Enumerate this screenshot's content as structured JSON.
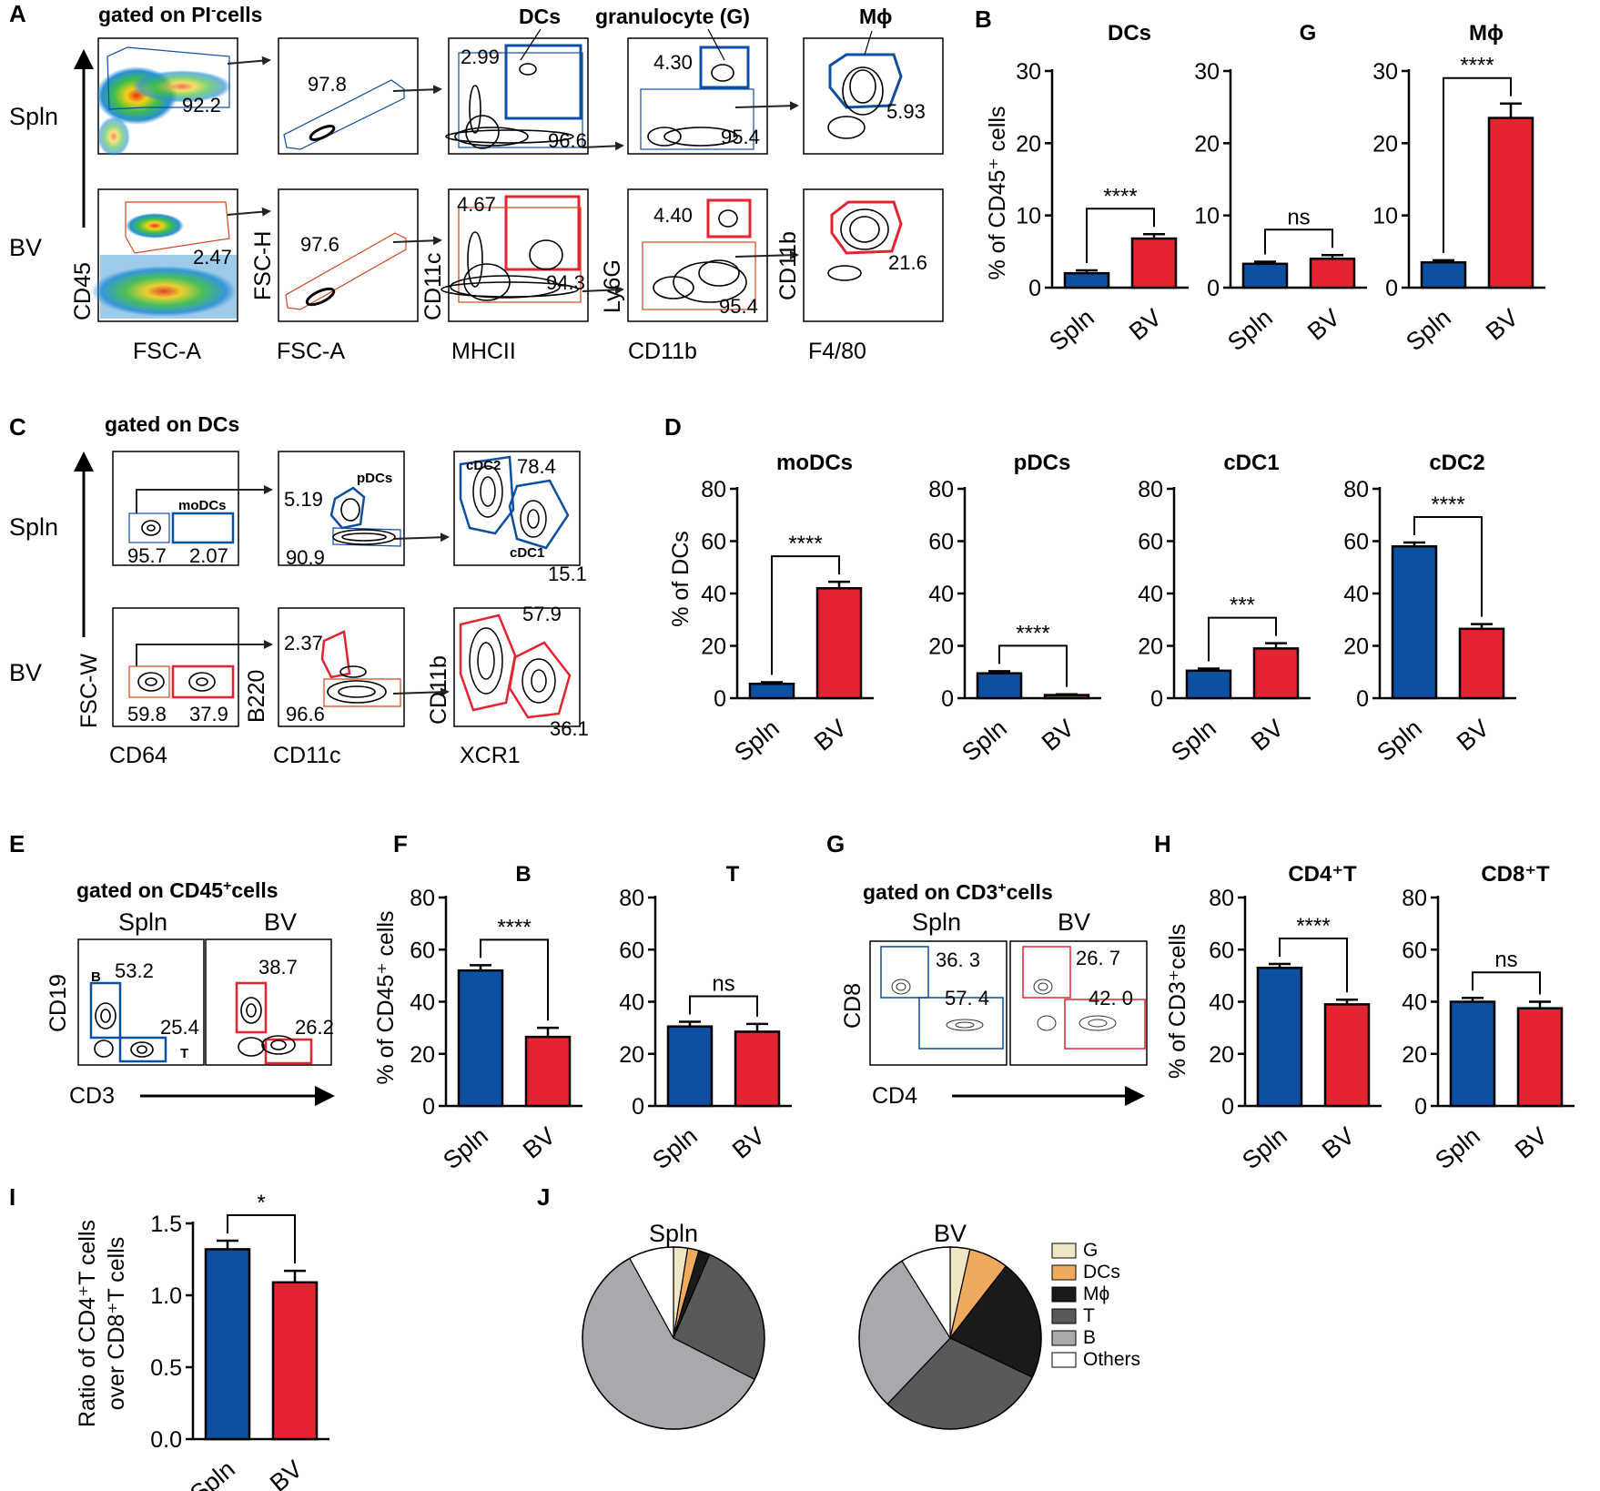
{
  "colors": {
    "spln": "#0d4fa0",
    "bv": "#e42431",
    "g": "#efe6c4",
    "dcs": "#eeab60",
    "mphi": "#1a1a1a",
    "t": "#595959",
    "b": "#a8a9ad",
    "others": "#ffffff"
  },
  "panel_labels": {
    "A": "A",
    "B": "B",
    "C": "C",
    "D": "D",
    "E": "E",
    "F": "F",
    "G": "G",
    "H": "H",
    "I": "I",
    "J": "J"
  },
  "gating_a": {
    "title": "gated on PI",
    "title_sup": "-",
    "title_suffix": "cells",
    "row_spln": "Spln",
    "row_bv": "BV",
    "gate_names": {
      "dcs": "DCs",
      "g": "granulocyte (G)",
      "mphi": "Mϕ"
    },
    "x_axis": [
      "FSC-A",
      "FSC-A",
      "MHCII",
      "CD11b",
      "F4/80"
    ],
    "y_axis": [
      "CD45",
      "FSC-H",
      "CD11c",
      "Ly6G",
      "CD11b"
    ],
    "spln_values": [
      "92.2",
      "97.8",
      "2.99",
      "96.6",
      "4.30",
      "95.4",
      "5.93"
    ],
    "bv_values": [
      "2.47",
      "97.6",
      "4.67",
      "94.3",
      "4.40",
      "95.4",
      "21.6"
    ]
  },
  "gating_c": {
    "title": "gated on DCs",
    "row_spln": "Spln",
    "row_bv": "BV",
    "gate_names": {
      "modcs": "moDCs",
      "pdcs": "pDCs",
      "cdc2": "cDC2",
      "cdc1": "cDC1"
    },
    "x_axis": [
      "CD64",
      "CD11c",
      "XCR1"
    ],
    "y_axis": [
      "FSC-W",
      "B220",
      "CD11b"
    ],
    "spln_values": [
      "95.7",
      "2.07",
      "5.19",
      "90.9",
      "78.4",
      "15.1"
    ],
    "bv_values": [
      "59.8",
      "37.9",
      "2.37",
      "96.6",
      "57.9",
      "36.1"
    ]
  },
  "gating_e": {
    "title": "gated on CD45",
    "title_sup": "+",
    "title_suffix": "cells",
    "col_spln": "Spln",
    "col_bv": "BV",
    "x_axis": "CD3",
    "y_axis": "CD19",
    "gate_b": "B",
    "gate_t": "T",
    "spln_values": [
      "53.2",
      "25.4"
    ],
    "bv_values": [
      "38.7",
      "26.2"
    ]
  },
  "gating_g": {
    "title": "gated on CD3",
    "title_sup": "+",
    "title_suffix": "cells",
    "col_spln": "Spln",
    "col_bv": "BV",
    "x_axis": "CD4",
    "y_axis": "CD8",
    "spln_values": [
      "36. 3",
      "57. 4"
    ],
    "bv_values": [
      "26. 7",
      "42. 0"
    ]
  },
  "axis_titles": {
    "B": "% of CD45⁺ cells",
    "D": "% of DCs",
    "F": "% of CD45⁺ cells",
    "H": "% of CD3⁺cells",
    "I": [
      "Ratio of CD4⁺T cells",
      "over CD8⁺T cells"
    ]
  },
  "chart_data": [
    {
      "panel": "B",
      "type": "bar",
      "title": "DCs",
      "categories": [
        "Spln",
        "BV"
      ],
      "values": [
        2.0,
        6.8
      ],
      "errors": [
        0.4,
        0.6
      ],
      "ylim": [
        0,
        30
      ],
      "yticks": [
        0,
        10,
        20,
        30
      ],
      "significance": "****"
    },
    {
      "panel": "B",
      "type": "bar",
      "title": "G",
      "categories": [
        "Spln",
        "BV"
      ],
      "values": [
        3.3,
        4.0
      ],
      "errors": [
        0.3,
        0.5
      ],
      "ylim": [
        0,
        30
      ],
      "yticks": [
        0,
        10,
        20,
        30
      ],
      "significance": "ns"
    },
    {
      "panel": "B",
      "type": "bar",
      "title": "Mϕ",
      "categories": [
        "Spln",
        "BV"
      ],
      "values": [
        3.5,
        23.5
      ],
      "errors": [
        0.3,
        2.0
      ],
      "ylim": [
        0,
        30
      ],
      "yticks": [
        0,
        10,
        20,
        30
      ],
      "significance": "****"
    },
    {
      "panel": "D",
      "type": "bar",
      "title": "moDCs",
      "categories": [
        "Spln",
        "BV"
      ],
      "values": [
        5.5,
        42.0
      ],
      "errors": [
        0.6,
        2.5
      ],
      "ylim": [
        0,
        80
      ],
      "yticks": [
        0,
        20,
        40,
        60,
        80
      ],
      "significance": "****"
    },
    {
      "panel": "D",
      "type": "bar",
      "title": "pDCs",
      "categories": [
        "Spln",
        "BV"
      ],
      "values": [
        9.5,
        1.2
      ],
      "errors": [
        0.8,
        0.3
      ],
      "ylim": [
        0,
        80
      ],
      "yticks": [
        0,
        20,
        40,
        60,
        80
      ],
      "significance": "****"
    },
    {
      "panel": "D",
      "type": "bar",
      "title": "cDC1",
      "categories": [
        "Spln",
        "BV"
      ],
      "values": [
        10.5,
        19.0
      ],
      "errors": [
        0.8,
        2.0
      ],
      "ylim": [
        0,
        80
      ],
      "yticks": [
        0,
        20,
        40,
        60,
        80
      ],
      "significance": "***"
    },
    {
      "panel": "D",
      "type": "bar",
      "title": "cDC2",
      "categories": [
        "Spln",
        "BV"
      ],
      "values": [
        58.0,
        26.5
      ],
      "errors": [
        1.5,
        1.8
      ],
      "ylim": [
        0,
        80
      ],
      "yticks": [
        0,
        20,
        40,
        60,
        80
      ],
      "significance": "****"
    },
    {
      "panel": "F",
      "type": "bar",
      "title": "B",
      "categories": [
        "Spln",
        "BV"
      ],
      "values": [
        52.0,
        26.5
      ],
      "errors": [
        2.0,
        3.5
      ],
      "ylim": [
        0,
        80
      ],
      "yticks": [
        0,
        20,
        40,
        60,
        80
      ],
      "significance": "****"
    },
    {
      "panel": "F",
      "type": "bar",
      "title": "T",
      "categories": [
        "Spln",
        "BV"
      ],
      "values": [
        30.5,
        28.5
      ],
      "errors": [
        1.8,
        3.0
      ],
      "ylim": [
        0,
        80
      ],
      "yticks": [
        0,
        20,
        40,
        60,
        80
      ],
      "significance": "ns"
    },
    {
      "panel": "H",
      "type": "bar",
      "title": "CD4⁺T",
      "categories": [
        "Spln",
        "BV"
      ],
      "values": [
        53.0,
        39.0
      ],
      "errors": [
        1.5,
        1.8
      ],
      "ylim": [
        0,
        80
      ],
      "yticks": [
        0,
        20,
        40,
        60,
        80
      ],
      "significance": "****"
    },
    {
      "panel": "H",
      "type": "bar",
      "title": "CD8⁺T",
      "categories": [
        "Spln",
        "BV"
      ],
      "values": [
        40.0,
        37.5
      ],
      "errors": [
        1.5,
        2.5
      ],
      "ylim": [
        0,
        80
      ],
      "yticks": [
        0,
        20,
        40,
        60,
        80
      ],
      "significance": "ns"
    },
    {
      "panel": "I",
      "type": "bar",
      "title": "",
      "categories": [
        "Spln",
        "BV"
      ],
      "values": [
        1.32,
        1.09
      ],
      "errors": [
        0.06,
        0.08
      ],
      "ylim": [
        0,
        1.5
      ],
      "yticks": [
        0.0,
        0.5,
        1.0,
        1.5
      ],
      "significance": "*"
    },
    {
      "panel": "J",
      "type": "pie",
      "title": "Spln",
      "labels": [
        "G",
        "DCs",
        "Mϕ",
        "T",
        "B",
        "Others"
      ],
      "values": [
        2.5,
        2.0,
        2.0,
        26.0,
        59.5,
        8.0
      ]
    },
    {
      "panel": "J",
      "type": "pie",
      "title": "BV",
      "labels": [
        "G",
        "DCs",
        "Mϕ",
        "T",
        "B",
        "Others"
      ],
      "values": [
        3.5,
        7.0,
        21.6,
        30.0,
        29.0,
        8.9
      ]
    }
  ]
}
